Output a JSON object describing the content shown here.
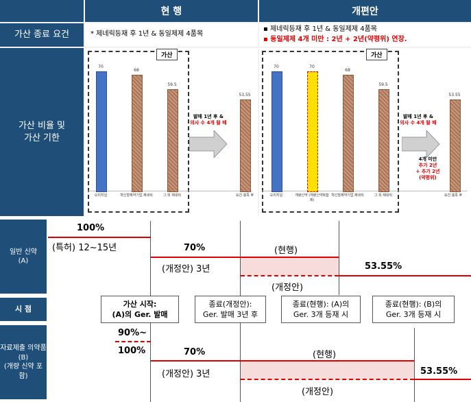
{
  "table": {
    "col_current": "현 행",
    "col_revised": "개편안",
    "row_condition": "가산 종료 요건",
    "row_rate": "가산 비율 및\n가산 기한",
    "current_condition": "* 제네릭등재 후 1년 & 동일제제 4품목",
    "revised_condition_1": "▪ 제네릭등재 후 1년 & 동일제제 4품목",
    "revised_condition_2": "▪ 동일제제 4개 미만 : 2년 + 2년(약평위) 연장.",
    "label_gasan": "가산",
    "arrow_note_1": "발매 1년 후 &",
    "arrow_note_2": "의사 수 4개 될 때",
    "under4_1": "4개 미만",
    "under4_2": "추가 2년",
    "under4_3": "+ 추가 2년",
    "under4_4": "(약평위)"
  },
  "chart_current": {
    "values": [
      "70",
      "68",
      "59.5",
      "53.55"
    ],
    "categories": [
      "오리지널",
      "혁신형제약기업 제네릭",
      "그 외 제네릭",
      "요건 충족 후"
    ]
  },
  "chart_revised": {
    "values": [
      "70",
      "70",
      "68",
      "59.5",
      "53.55"
    ],
    "categories": [
      "오리지널",
      "개량신약 (개량신약복합제)",
      "혁신형제약기업 제네릭",
      "그 외 제네릭",
      "요건 충족 후"
    ]
  },
  "timeline": {
    "row_a_label": "일반 신약\n(A)",
    "row_b_label": "자료제출 의약품\n(B)\n(개량 신약 포함)",
    "row_t_label": "시 점",
    "a_100": "100%",
    "a_patent": "(특허) 12~15년",
    "a_70": "70%",
    "a_current": "(현행)",
    "a_revised_3y": "(개정안) 3년",
    "a_5355": "53.55%",
    "a_revised": "(개정안)",
    "t_start": "가산 시작:\n(A)의 Ger. 발매",
    "t_end_revised": "종료(개정안):\nGer. 발매 3년 후",
    "t_end_a": "종료(현행): (A)의\nGer. 3개 등재 시",
    "t_end_b": "종료(현행): (B)의\nGer. 3개 등재 시",
    "b_90": "90%~",
    "b_100": "100%",
    "b_70": "70%",
    "b_current": "(현행)",
    "b_revised_3y": "(개정안) 3년",
    "b_5355": "53.55%",
    "b_revised": "(개정안)"
  },
  "colors": {
    "header": "#1f4e79",
    "red": "#e00000",
    "pink": "#f7dcdc",
    "blue_bar": "#4472c4",
    "yellow_bar": "#ffe000"
  }
}
